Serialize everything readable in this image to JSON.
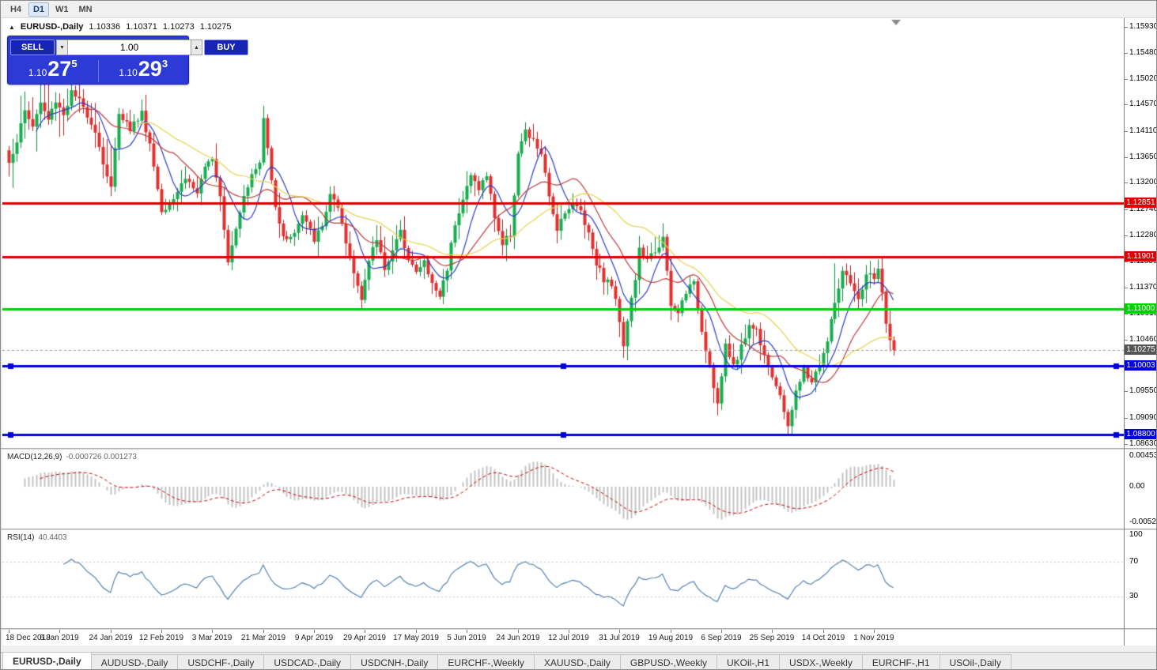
{
  "toolbar": {
    "timeframes": [
      {
        "label": "H4",
        "active": false
      },
      {
        "label": "D1",
        "active": true
      },
      {
        "label": "W1",
        "active": false
      },
      {
        "label": "MN",
        "active": false
      }
    ]
  },
  "chart": {
    "collapse_icon": "▲",
    "symbol": "EURUSD-,Daily",
    "open": "1.10336",
    "high": "1.10371",
    "low": "1.10273",
    "close": "1.10275"
  },
  "trade_panel": {
    "sell_label": "SELL",
    "buy_label": "BUY",
    "volume": "1.00",
    "spin_down_icon": "▼",
    "spin_up_icon": "▲",
    "sell_price": {
      "small": "1.10",
      "big": "27",
      "sup": "5"
    },
    "buy_price": {
      "small": "1.10",
      "big": "29",
      "sup": "3"
    }
  },
  "macd_panel": {
    "title": "MACD(12,26,9)",
    "values_text": "-0.000726 0.001273",
    "scale_labels": [
      "0.004536",
      "0.00",
      "-0.005205"
    ]
  },
  "rsi_panel": {
    "title": "RSI(14)",
    "value_text": "40.4403",
    "scale_labels": [
      "100",
      "70",
      "30"
    ],
    "levels": [
      70,
      30
    ]
  },
  "current_price": {
    "label": "1.10275",
    "value": 1.10275,
    "tag_color": "#545454"
  },
  "tabs": [
    {
      "label": "EURUSD-,Daily",
      "active": true
    },
    {
      "label": "AUDUSD-,Daily",
      "active": false
    },
    {
      "label": "USDCHF-,Daily",
      "active": false
    },
    {
      "label": "USDCAD-,Daily",
      "active": false
    },
    {
      "label": "USDCNH-,Daily",
      "active": false
    },
    {
      "label": "EURCHF-,Weekly",
      "active": false
    },
    {
      "label": "XAUUSD-,Daily",
      "active": false
    },
    {
      "label": "GBPUSD-,Weekly",
      "active": false
    },
    {
      "label": "UKOil-,H1",
      "active": false
    },
    {
      "label": "USDX-,Weekly",
      "active": false
    },
    {
      "label": "EURCHF-,H1",
      "active": false
    },
    {
      "label": "USOil-,Daily",
      "active": false
    }
  ],
  "chart_data": {
    "type": "candlestick",
    "symbol": "EURUSD",
    "timeframe": "Daily",
    "title": "EURUSD-,Daily",
    "current_ohlc": {
      "open": 1.10336,
      "high": 1.10371,
      "low": 1.10273,
      "close": 1.10275
    },
    "bid": 1.10275,
    "ask": 1.10293,
    "y_axis": {
      "top": 1.1593,
      "bottom": 1.0863,
      "ticks": [
        "1.15930",
        "1.15480",
        "1.15020",
        "1.14570",
        "1.14110",
        "1.13650",
        "1.13200",
        "1.12740",
        "1.12280",
        "1.11830",
        "1.11370",
        "1.10910",
        "1.10460",
        "1.10000",
        "1.09550",
        "1.09090",
        "1.08630"
      ]
    },
    "x_labels": [
      "18 Dec 2018",
      "6 Jan 2019",
      "24 Jan 2019",
      "12 Feb 2019",
      "3 Mar 2019",
      "21 Mar 2019",
      "9 Apr 2019",
      "29 Apr 2019",
      "17 May 2019",
      "5 Jun 2019",
      "24 Jun 2019",
      "12 Jul 2019",
      "31 Jul 2019",
      "19 Aug 2019",
      "6 Sep 2019",
      "25 Sep 2019",
      "14 Oct 2019",
      "1 Nov 2019"
    ],
    "bars": 227,
    "bars_per_label": 13,
    "last_close": 1.10275,
    "horizontal_lines": [
      {
        "price": 1.12851,
        "label": "1.12851",
        "color": "#DF0000",
        "width": 3,
        "selected": false
      },
      {
        "price": 1.11901,
        "label": "1.11901",
        "color": "#DF0000",
        "width": 3,
        "selected": false
      },
      {
        "price": 1.11,
        "label": "1.11000",
        "color": "#00D200",
        "width": 3,
        "selected": false
      },
      {
        "price": 1.10003,
        "label": "1.10003",
        "color": "#0000DF",
        "width": 3,
        "selected": true
      },
      {
        "price": 1.088,
        "label": "1.08800",
        "color": "#0000DF",
        "width": 3,
        "selected": true
      }
    ],
    "moving_averages": [
      {
        "period": 8,
        "color": "#2b3cc8"
      },
      {
        "period": 16,
        "color": "#c03a3a"
      },
      {
        "period": 34,
        "color": "#e3d34b"
      }
    ],
    "indicators": [
      {
        "name": "MACD",
        "params": [
          12,
          26,
          9
        ],
        "current_values": [
          -0.000726,
          0.001273
        ],
        "scale": [
          0.004536,
          0.0,
          -0.005205
        ]
      },
      {
        "name": "RSI",
        "params": [
          14
        ],
        "current_value": 40.4403,
        "levels": [
          70,
          30
        ],
        "scale": [
          100,
          70,
          30
        ]
      }
    ],
    "candle_colors": {
      "up_fill": "#17ad4e",
      "up_stroke": "#0d8a3c",
      "down_fill": "#e03030",
      "down_stroke": "#b22020"
    },
    "anchors": [
      [
        0,
        1.1355
      ],
      [
        2,
        1.1395
      ],
      [
        4,
        1.1445
      ],
      [
        6,
        1.142
      ],
      [
        8,
        1.146
      ],
      [
        10,
        1.143
      ],
      [
        12,
        1.1465
      ],
      [
        14,
        1.144
      ],
      [
        16,
        1.1478
      ],
      [
        18,
        1.1462
      ],
      [
        20,
        1.144
      ],
      [
        22,
        1.1412
      ],
      [
        24,
        1.1355
      ],
      [
        26,
        1.131
      ],
      [
        28,
        1.1445
      ],
      [
        31,
        1.1415
      ],
      [
        34,
        1.1442
      ],
      [
        36,
        1.1388
      ],
      [
        39,
        1.1272
      ],
      [
        42,
        1.1295
      ],
      [
        45,
        1.133
      ],
      [
        48,
        1.1302
      ],
      [
        50,
        1.1342
      ],
      [
        52,
        1.1368
      ],
      [
        54,
        1.13
      ],
      [
        56,
        1.1186
      ],
      [
        58,
        1.1242
      ],
      [
        60,
        1.1302
      ],
      [
        62,
        1.1332
      ],
      [
        64,
        1.1355
      ],
      [
        65,
        1.1432
      ],
      [
        66,
        1.138
      ],
      [
        68,
        1.1282
      ],
      [
        70,
        1.1222
      ],
      [
        73,
        1.1232
      ],
      [
        75,
        1.1262
      ],
      [
        78,
        1.1222
      ],
      [
        80,
        1.1242
      ],
      [
        82,
        1.1302
      ],
      [
        84,
        1.1272
      ],
      [
        86,
        1.1212
      ],
      [
        88,
        1.1162
      ],
      [
        90,
        1.1122
      ],
      [
        92,
        1.1182
      ],
      [
        94,
        1.1222
      ],
      [
        96,
        1.1172
      ],
      [
        98,
        1.1202
      ],
      [
        100,
        1.1232
      ],
      [
        102,
        1.1192
      ],
      [
        104,
        1.1162
      ],
      [
        106,
        1.1182
      ],
      [
        108,
        1.1142
      ],
      [
        110,
        1.1122
      ],
      [
        112,
        1.1172
      ],
      [
        114,
        1.1252
      ],
      [
        116,
        1.1292
      ],
      [
        118,
        1.1332
      ],
      [
        120,
        1.1312
      ],
      [
        122,
        1.1332
      ],
      [
        124,
        1.1262
      ],
      [
        126,
        1.1212
      ],
      [
        128,
        1.1232
      ],
      [
        130,
        1.1372
      ],
      [
        132,
        1.1408
      ],
      [
        134,
        1.1392
      ],
      [
        136,
        1.1372
      ],
      [
        138,
        1.1292
      ],
      [
        140,
        1.1242
      ],
      [
        142,
        1.1272
      ],
      [
        144,
        1.1282
      ],
      [
        146,
        1.1272
      ],
      [
        148,
        1.1232
      ],
      [
        150,
        1.1182
      ],
      [
        152,
        1.1152
      ],
      [
        154,
        1.1142
      ],
      [
        156,
        1.1082
      ],
      [
        157,
        1.1038
      ],
      [
        158,
        1.1082
      ],
      [
        160,
        1.1152
      ],
      [
        161,
        1.1202
      ],
      [
        163,
        1.1182
      ],
      [
        165,
        1.1202
      ],
      [
        167,
        1.1222
      ],
      [
        169,
        1.1102
      ],
      [
        171,
        1.1092
      ],
      [
        173,
        1.1132
      ],
      [
        175,
        1.1142
      ],
      [
        177,
        1.1062
      ],
      [
        179,
        1.1002
      ],
      [
        181,
        1.0932
      ],
      [
        183,
        1.1032
      ],
      [
        185,
        1.1002
      ],
      [
        187,
        1.1032
      ],
      [
        189,
        1.1072
      ],
      [
        191,
        1.1062
      ],
      [
        193,
        1.1022
      ],
      [
        195,
        1.0982
      ],
      [
        197,
        1.0942
      ],
      [
        199,
        1.0898
      ],
      [
        201,
        1.0952
      ],
      [
        203,
        1.0992
      ],
      [
        205,
        1.0972
      ],
      [
        207,
        1.1002
      ],
      [
        209,
        1.1042
      ],
      [
        211,
        1.1112
      ],
      [
        213,
        1.1162
      ],
      [
        215,
        1.1142
      ],
      [
        217,
        1.1112
      ],
      [
        219,
        1.1162
      ],
      [
        221,
        1.1152
      ],
      [
        222,
        1.1172
      ],
      [
        223,
        1.1122
      ],
      [
        224,
        1.1072
      ],
      [
        225,
        1.1042
      ],
      [
        226,
        1.10275
      ]
    ],
    "wick_highs": {
      "16": 1.1488,
      "65": 1.1452,
      "132": 1.1412,
      "211": 1.1179
    },
    "wick_lows": {
      "56": 1.1176,
      "157": 1.1026,
      "181": 1.0926,
      "199": 1.0879
    }
  }
}
